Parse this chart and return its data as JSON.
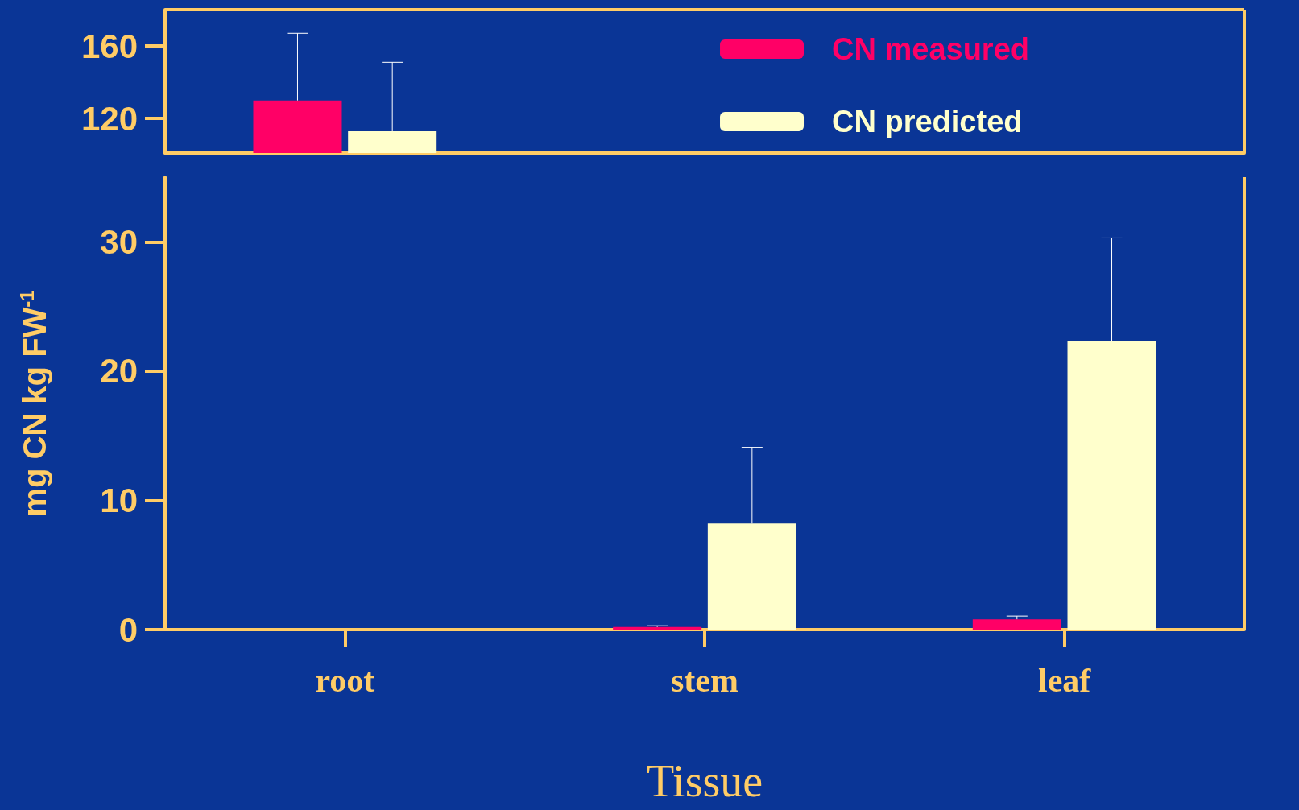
{
  "chart_data": [
    {
      "type": "bar",
      "categories": [
        null,
        null,
        null
      ],
      "ylim": [
        101,
        180
      ],
      "yticks": [
        120,
        160
      ],
      "tick_labels": "y",
      "legend": "right",
      "grid": false,
      "series": [
        {
          "name": "CN measured",
          "color": "#ff0066",
          "values": [
            130,
            null,
            null
          ],
          "errors": [
            [
              130,
              167
            ],
            null,
            null
          ]
        },
        {
          "name": "CN predicted",
          "color": "#ffffcc",
          "values": [
            113,
            null,
            null
          ],
          "errors": [
            [
              113,
              151
            ],
            null,
            null
          ]
        }
      ]
    },
    {
      "type": "bar",
      "categories": [
        "root",
        "stem",
        "leaf"
      ],
      "ylim": [
        0,
        35
      ],
      "yticks": [
        0,
        10,
        20,
        30
      ],
      "xlabel": "Tissue",
      "ylabel": "mg CN kg FW$^{-1}$",
      "legend": false,
      "grid": false,
      "series": [
        {
          "color": "#ff0066",
          "values": [
            null,
            0.2,
            0.8
          ],
          "errors": [
            null,
            [
              0.2,
              0.3
            ],
            [
              0.8,
              1.05
            ]
          ]
        },
        {
          "color": "#ffffcc",
          "values": [
            null,
            8.2,
            22.3
          ],
          "errors": [
            null,
            [
              8.2,
              14.1
            ],
            [
              22.3,
              30.3
            ]
          ]
        }
      ]
    }
  ]
}
